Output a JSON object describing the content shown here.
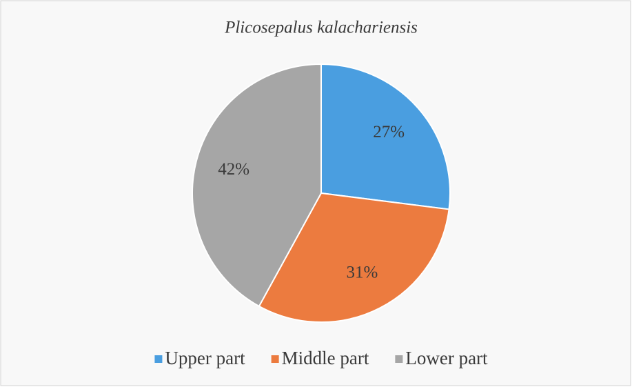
{
  "chart_data": {
    "type": "pie",
    "title": "Plicosepalus kalachariensis",
    "categories": [
      "Upper part",
      "Middle part",
      "Lower part"
    ],
    "values": [
      27,
      31,
      42
    ],
    "value_labels": [
      "27%",
      "31%",
      "42%"
    ],
    "colors": [
      "#4a9ee0",
      "#ec7b3f",
      "#a6a6a6"
    ],
    "legend": "bottom"
  }
}
